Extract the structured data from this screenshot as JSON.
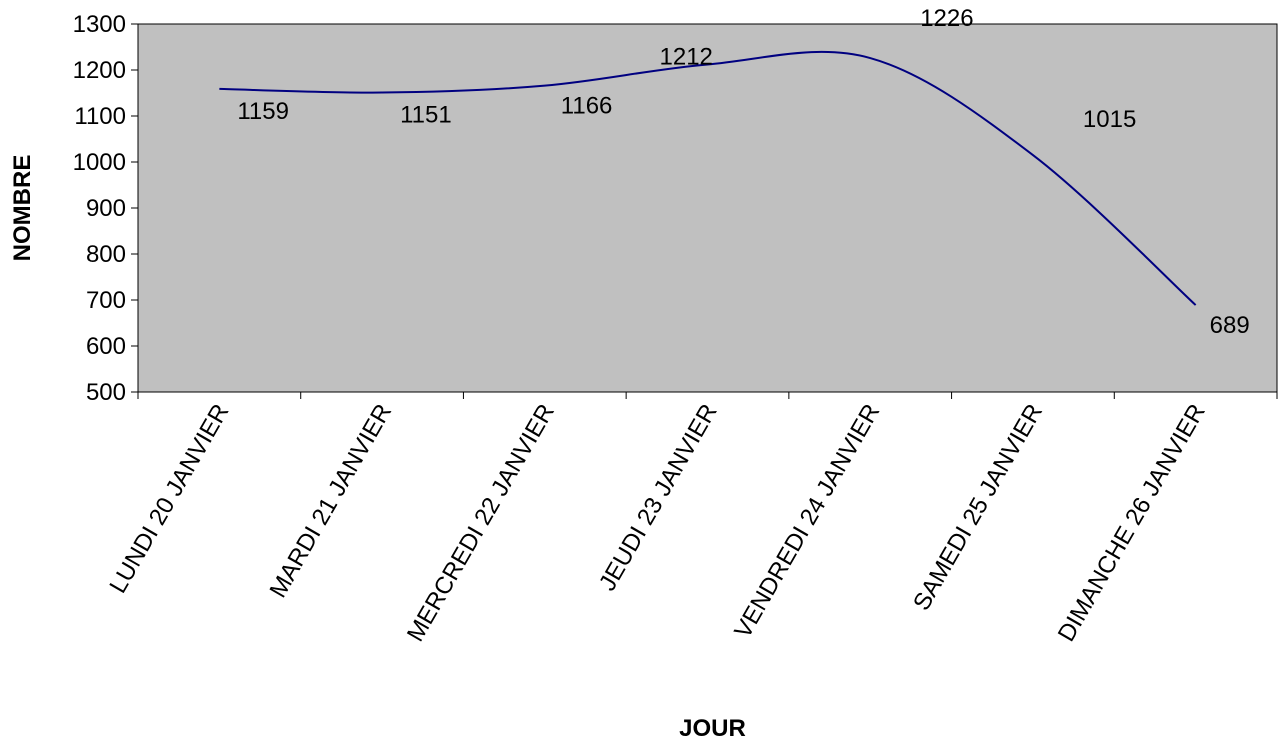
{
  "chart_data": {
    "type": "line",
    "categories": [
      "LUNDI 20 JANVIER",
      "MARDI 21 JANVIER",
      "MERCREDI 22 JANVIER",
      "JEUDI 23 JANVIER",
      "VENDREDI 24 JANVIER",
      "SAMEDI 25 JANVIER",
      "DIMANCHE 26 JANVIER"
    ],
    "series": [
      {
        "values": [
          1159,
          1151,
          1166,
          1212,
          1226,
          1015,
          689
        ]
      }
    ],
    "data_labels": [
      "1159",
      "1151",
      "1166",
      "1212",
      "1226",
      "1015",
      "689"
    ],
    "xlabel": "JOUR",
    "ylabel": "NOMBRE",
    "ylim": [
      500,
      1300
    ],
    "yticks": [
      500,
      600,
      700,
      800,
      900,
      1000,
      1100,
      1200,
      1300
    ],
    "ytick_labels": [
      "500",
      "600",
      "700",
      "800",
      "900",
      "1000",
      "1100",
      "1200",
      "1300"
    ],
    "grid": false,
    "smooth": true,
    "colors": {
      "plot_background": "#c0c0c0",
      "line": "#000080",
      "axis": "#000000"
    }
  }
}
